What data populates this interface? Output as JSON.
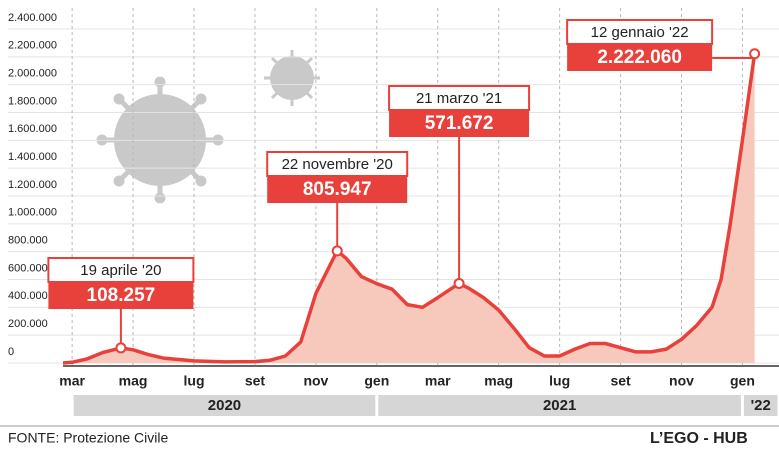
{
  "chart_data": {
    "type": "area",
    "x": [
      -0.3,
      0,
      0.5,
      1,
      1.6,
      2,
      2.5,
      3,
      4,
      5,
      6,
      6.5,
      7,
      7.5,
      8,
      8.7,
      9,
      9.5,
      10,
      10.5,
      11,
      11.5,
      12,
      12.7,
      13,
      13.5,
      14,
      14.5,
      15,
      15.5,
      16,
      16.5,
      17,
      17.5,
      18,
      18.5,
      19,
      19.5,
      20,
      20.5,
      21,
      21.3,
      21.6,
      22,
      22.4
    ],
    "values": [
      0,
      5000,
      30000,
      75000,
      108257,
      95000,
      60000,
      35000,
      15000,
      8000,
      10000,
      20000,
      50000,
      150000,
      500000,
      805947,
      750000,
      620000,
      570000,
      530000,
      420000,
      400000,
      470000,
      571672,
      540000,
      470000,
      380000,
      250000,
      110000,
      50000,
      50000,
      100000,
      140000,
      140000,
      110000,
      80000,
      80000,
      100000,
      170000,
      270000,
      400000,
      600000,
      1000000,
      1600000,
      2222060
    ],
    "color": "#e8403a",
    "fill_color": "#f7c9bc",
    "xlim": [
      -0.3,
      23.2
    ],
    "xticks": [
      {
        "value": 0,
        "label": "mar"
      },
      {
        "value": 2,
        "label": "mag"
      },
      {
        "value": 4,
        "label": "lug"
      },
      {
        "value": 6,
        "label": "set"
      },
      {
        "value": 8,
        "label": "nov"
      },
      {
        "value": 10,
        "label": "gen"
      },
      {
        "value": 12,
        "label": "mar"
      },
      {
        "value": 14,
        "label": "mag"
      },
      {
        "value": 16,
        "label": "lug"
      },
      {
        "value": 18,
        "label": "set"
      },
      {
        "value": 20,
        "label": "nov"
      },
      {
        "value": 22,
        "label": "gen"
      }
    ],
    "ylim": [
      0,
      2400000
    ],
    "yticks": [
      0,
      {
        "value": 200000,
        "label": "200.000"
      },
      {
        "value": 400000,
        "label": "400.000"
      },
      {
        "value": 600000,
        "label": "600.000"
      },
      {
        "value": 800000,
        "label": "800.000"
      },
      {
        "value": 1000000,
        "label": "1.000.000"
      },
      {
        "value": 1200000,
        "label": "1.200.000"
      },
      {
        "value": 1400000,
        "label": "1.400.000"
      },
      {
        "value": 1600000,
        "label": "1.600.000"
      },
      {
        "value": 1800000,
        "label": "1.800.000"
      },
      {
        "value": 2000000,
        "label": "2.000.000"
      },
      {
        "value": 2200000,
        "label": "2.200.000"
      },
      {
        "value": 2400000,
        "label": "2.400.000"
      }
    ],
    "grid": true,
    "year_bands": [
      {
        "label": "2020",
        "from": 0,
        "to": 10
      },
      {
        "label": "2021",
        "from": 10,
        "to": 22
      },
      {
        "label": "'22",
        "from": 22,
        "to": 23.2
      }
    ],
    "annotations": [
      {
        "text": "19 aprile '20",
        "x": 1.6,
        "value": 108257,
        "value_label": "108.257"
      },
      {
        "text": "22 novembre '20",
        "x": 8.7,
        "value": 805947,
        "value_label": "805.947"
      },
      {
        "text": "21 marzo '21",
        "x": 12.7,
        "value": 571672,
        "value_label": "571.672"
      },
      {
        "text": "12 gennaio '22",
        "x": 22.4,
        "value": 2222060,
        "value_label": "2.222.060"
      }
    ]
  },
  "footer": {
    "source": "FONTE: Protezione Civile",
    "credit": "L’EGO - HUB"
  }
}
